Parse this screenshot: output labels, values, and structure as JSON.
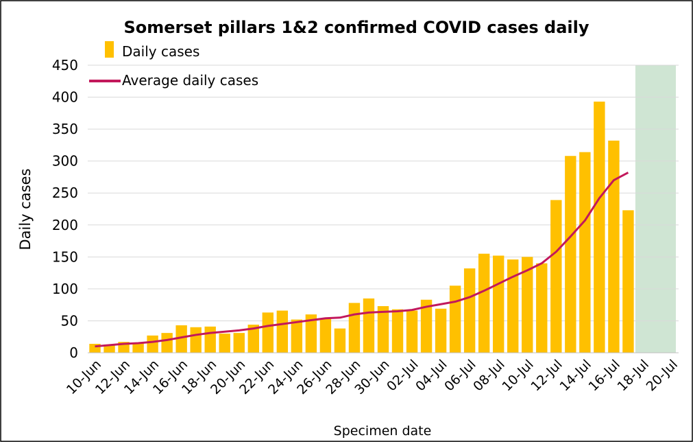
{
  "chart_data": {
    "type": "bar",
    "title": "Somerset pillars 1&2 confirmed COVID cases daily",
    "x_label": "Specimen date",
    "y_label": "Daily cases",
    "categories": [
      "10-Jun",
      null,
      "12-Jun",
      null,
      "14-Jun",
      null,
      "16-Jun",
      null,
      "18-Jun",
      null,
      "20-Jun",
      null,
      "22-Jun",
      null,
      "24-Jun",
      null,
      "26-Jun",
      null,
      "28-Jun",
      null,
      "30-Jun",
      null,
      "02-Jul",
      null,
      "04-Jul",
      null,
      "06-Jul",
      null,
      "08-Jul",
      null,
      "10-Jul",
      null,
      "12-Jul",
      null,
      "14-Jul",
      null,
      "16-Jul",
      null,
      "18-Jul",
      null,
      "20-Jul"
    ],
    "series": [
      {
        "name": "Daily cases",
        "type": "bar",
        "color": "#ffc000",
        "values": [
          14,
          13,
          17,
          15,
          27,
          31,
          43,
          40,
          41,
          30,
          31,
          44,
          63,
          66,
          52,
          60,
          53,
          38,
          78,
          85,
          73,
          68,
          66,
          83,
          69,
          105,
          132,
          155,
          152,
          146,
          150,
          140,
          239,
          308,
          314,
          393,
          332,
          223,
          null,
          null,
          null
        ]
      },
      {
        "name": "Average daily cases",
        "type": "line",
        "color": "#c2185b",
        "values": [
          10,
          12,
          14,
          15,
          17,
          20,
          24,
          28,
          31,
          33,
          35,
          38,
          42,
          45,
          48,
          51,
          54,
          55,
          60,
          63,
          64,
          65,
          67,
          72,
          76,
          80,
          87,
          97,
          108,
          119,
          129,
          140,
          158,
          182,
          207,
          242,
          270,
          282,
          null,
          null,
          null
        ]
      }
    ],
    "highlight": {
      "from": "18-Jul",
      "to": "20-Jul",
      "color": "#cfe5d3"
    },
    "ylim": [
      0,
      450
    ],
    "yticks": [
      0,
      50,
      100,
      150,
      200,
      250,
      300,
      350,
      400,
      450
    ],
    "grid": true,
    "legend": "top-left"
  }
}
